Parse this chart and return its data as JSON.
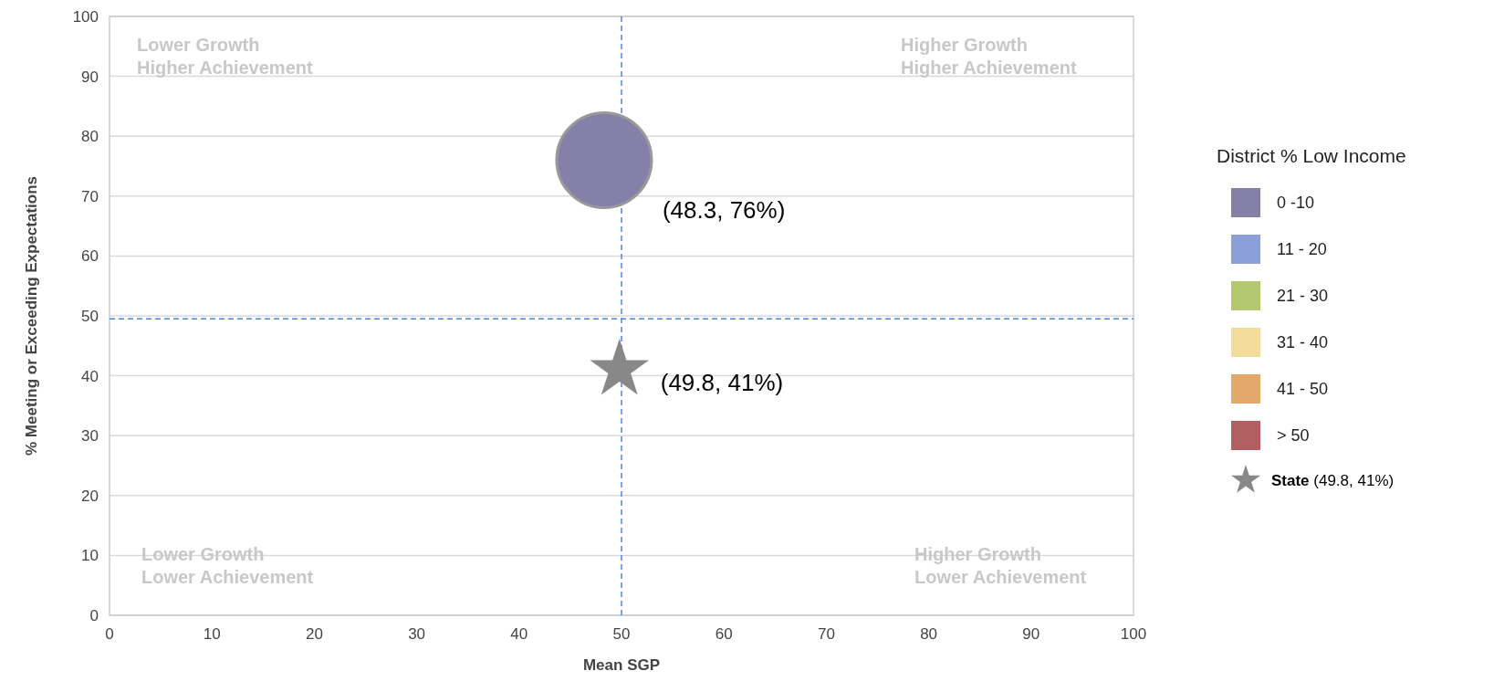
{
  "chart_data": {
    "type": "bubble",
    "xlabel": "Mean SGP",
    "ylabel": "% Meeting or Exceeding Expectations",
    "legend_title": "District % Low Income",
    "legend": "right",
    "grid": "y",
    "xlim": [
      0,
      100
    ],
    "ylim": [
      0,
      100
    ],
    "xticks": [
      0,
      10,
      20,
      30,
      40,
      50,
      60,
      70,
      80,
      90,
      100
    ],
    "yticks": [
      0,
      10,
      20,
      30,
      40,
      50,
      60,
      70,
      80,
      90,
      100
    ],
    "series": [
      {
        "name": "0 -10",
        "color": "#8580a8",
        "x": [
          48.3
        ],
        "values": [
          76
        ],
        "sizes": [
          1
        ],
        "marker": "circle",
        "value_labels": [
          "(48.3, 76%)"
        ]
      },
      {
        "name": "11 - 20",
        "color": "#8a9fd8"
      },
      {
        "name": "21 - 30",
        "color": "#b3c76f"
      },
      {
        "name": "31 - 40",
        "color": "#f2dc9b"
      },
      {
        "name": "41 - 50",
        "color": "#e2a96a"
      },
      {
        "name": "> 50",
        "color": "#b06060"
      },
      {
        "name": "State (49.8, 41%)",
        "type": "scatter",
        "color": "#888888",
        "marker": "star",
        "x": [
          49.8
        ],
        "values": [
          41
        ],
        "value_labels": [
          "(49.8, 41%)"
        ]
      }
    ],
    "ref_lines": [
      {
        "axis": "x",
        "value": 50,
        "color": "#4a86e8",
        "line_style": "dashed"
      },
      {
        "axis": "y",
        "value": 49.5,
        "color": "#4a86e8",
        "line_style": "dashed"
      }
    ],
    "annotations": [
      "Lower Growth\nHigher Achievement",
      "Higher Growth\nHigher Achievement",
      "Lower Growth\nLower Achievement",
      "Higher Growth\nLower Achievement"
    ]
  }
}
